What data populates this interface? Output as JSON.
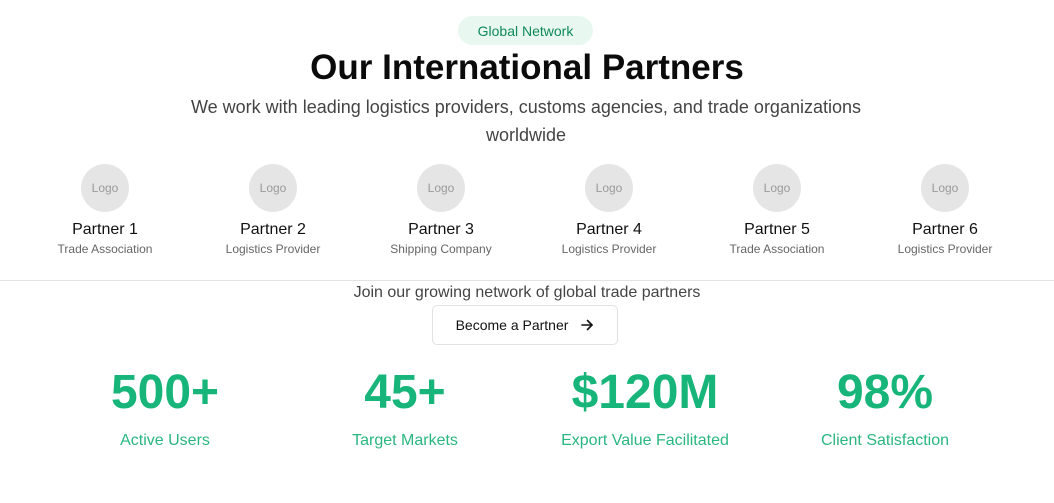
{
  "header": {
    "badge": "Global Network",
    "title": "Our International Partners",
    "subtitle": "We work with leading logistics providers, customs agencies, and trade organizations worldwide"
  },
  "partners": [
    {
      "logo": "Logo",
      "name": "Partner 1",
      "type": "Trade Association"
    },
    {
      "logo": "Logo",
      "name": "Partner 2",
      "type": "Logistics Provider"
    },
    {
      "logo": "Logo",
      "name": "Partner 3",
      "type": "Shipping Company"
    },
    {
      "logo": "Logo",
      "name": "Partner 4",
      "type": "Logistics Provider"
    },
    {
      "logo": "Logo",
      "name": "Partner 5",
      "type": "Trade Association"
    },
    {
      "logo": "Logo",
      "name": "Partner 6",
      "type": "Logistics Provider"
    }
  ],
  "cta": {
    "text": "Join our growing network of global trade partners",
    "button_label": "Become a Partner",
    "button_icon": "arrow-right-icon"
  },
  "stats": [
    {
      "value": "500+",
      "label": "Active Users"
    },
    {
      "value": "45+",
      "label": "Target Markets"
    },
    {
      "value": "$120M",
      "label": "Export Value Facilitated"
    },
    {
      "value": "98%",
      "label": "Client Satisfaction"
    }
  ],
  "colors": {
    "accent": "#17b57a",
    "badge_bg": "#e8f8f0",
    "badge_text": "#0f8a5a"
  }
}
